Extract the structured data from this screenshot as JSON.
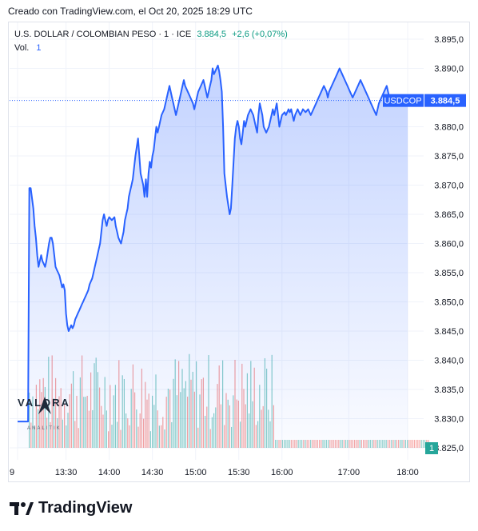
{
  "header": {
    "created_text": "Creado con TradingView.com, el Oct 20, 2025 18:29 UTC"
  },
  "legend": {
    "symbol": "U.S. DOLLAR / COLOMBIAN PESO · 1 · ICE",
    "price": "3.884,5",
    "change": "+2,6 (+0,07%)",
    "vol_label": "Vol.",
    "vol_value": "1"
  },
  "watermark": {
    "name": "VALORA",
    "sub": "ANALITIK"
  },
  "footer": {
    "brand": "TradingView"
  },
  "colors": {
    "line": "#2962ff",
    "up": "#26a69a",
    "down": "#ef5350",
    "grid": "#f0f3fa"
  },
  "chart_data": {
    "type": "area",
    "ylim": [
      3823,
      3897
    ],
    "y_ticks": [
      "3.895,0",
      "3.890,0",
      "3.885,0",
      "3.880,0",
      "3.875,0",
      "3.870,0",
      "3.865,0",
      "3.860,0",
      "3.855,0",
      "3.850,0",
      "3.845,0",
      "3.840,0",
      "3.835,0",
      "3.830,0",
      "3.825,0"
    ],
    "y_tick_values": [
      3895,
      3890,
      3885,
      3880,
      3875,
      3870,
      3865,
      3860,
      3855,
      3850,
      3845,
      3840,
      3835,
      3830,
      3825
    ],
    "x_ticks": [
      "9",
      "13:30",
      "14:00",
      "14:30",
      "15:00",
      "15:30",
      "16:00",
      "17:00",
      "18:00"
    ],
    "x_tick_values": [
      0,
      37,
      70,
      103,
      136,
      169,
      202,
      253,
      298
    ],
    "last_price_label": "USDCOP",
    "last_price_value": "3.884,5",
    "last_price": 3884.5,
    "volume_label": "1",
    "series": [
      {
        "x": [
          0,
          8,
          9,
          10,
          12,
          13,
          14,
          15,
          16,
          17,
          18,
          19,
          20,
          21,
          22,
          24,
          25,
          26,
          27,
          28,
          29,
          30,
          31,
          32,
          34,
          35,
          36,
          37,
          38,
          39,
          40,
          41,
          42,
          43,
          44,
          45,
          46,
          47,
          48,
          49,
          50,
          51,
          52,
          53,
          54,
          55,
          56,
          57,
          58,
          59,
          60,
          61,
          62,
          63,
          64,
          65,
          66,
          67,
          68,
          69,
          70,
          72,
          74,
          75,
          76,
          77,
          78,
          79,
          80,
          81,
          82,
          84,
          85,
          86,
          87,
          88,
          90,
          92,
          94,
          95,
          96,
          97,
          98,
          99,
          100,
          101,
          102,
          103,
          104,
          105,
          106,
          107,
          108,
          109,
          110,
          112,
          114,
          116,
          118,
          119,
          120,
          121,
          122,
          123,
          124,
          125,
          126,
          127,
          128,
          130,
          132,
          134,
          135,
          136,
          137,
          138,
          140,
          142,
          143,
          144,
          145,
          146,
          147,
          148,
          149,
          150,
          151,
          152,
          153,
          154,
          155,
          156,
          157,
          158,
          160,
          162,
          163,
          164,
          165,
          166,
          167,
          168,
          169,
          170,
          171,
          172,
          173,
          174,
          176,
          178,
          180,
          181,
          182,
          183,
          184,
          185,
          186,
          187,
          188,
          190,
          192,
          194,
          195,
          196,
          197,
          198,
          199,
          200,
          202,
          204,
          205,
          206,
          207,
          208,
          209,
          210,
          211,
          212,
          214,
          216,
          218,
          220,
          222,
          224,
          226,
          228,
          230,
          232,
          234,
          236,
          237,
          238,
          240,
          242,
          244,
          246,
          248,
          250,
          252,
          254,
          256,
          258,
          260,
          262,
          264,
          266,
          268,
          270,
          272,
          274,
          276,
          278,
          280,
          282,
          284,
          286,
          288,
          290,
          292,
          294,
          296,
          298
        ],
        "values": [
          3829.5,
          3829.5,
          3869.5,
          3869.5,
          3866,
          3863,
          3861,
          3858,
          3856,
          3857,
          3858,
          3857,
          3856.5,
          3856,
          3857,
          3860,
          3861,
          3861,
          3860,
          3858,
          3856,
          3855.5,
          3855,
          3854.5,
          3852.5,
          3853,
          3852,
          3848,
          3846,
          3845,
          3845.5,
          3846,
          3845.5,
          3846,
          3847,
          3847.5,
          3848,
          3848.5,
          3849,
          3849.5,
          3850,
          3850.5,
          3851,
          3851.5,
          3852,
          3853,
          3853.5,
          3854,
          3855,
          3856,
          3857,
          3858,
          3859,
          3860,
          3862,
          3864,
          3865,
          3864,
          3863,
          3864,
          3864.5,
          3864,
          3864.5,
          3863,
          3862,
          3861,
          3860.5,
          3860,
          3861,
          3862,
          3864,
          3866,
          3868,
          3869,
          3870,
          3871,
          3875,
          3878,
          3872,
          3871,
          3870,
          3868,
          3871,
          3868,
          3872,
          3874,
          3873,
          3875,
          3876,
          3878,
          3880,
          3879,
          3880,
          3881,
          3882,
          3883,
          3885,
          3887,
          3885,
          3884,
          3883,
          3882,
          3883,
          3884,
          3885,
          3886,
          3887,
          3888,
          3887,
          3886,
          3885,
          3884,
          3883,
          3884,
          3885,
          3886,
          3887,
          3888,
          3887,
          3886,
          3885,
          3886,
          3887,
          3888,
          3890,
          3889,
          3889.5,
          3890,
          3890.5,
          3889.5,
          3888,
          3886,
          3880,
          3872,
          3868,
          3865,
          3866,
          3870,
          3874,
          3878,
          3880,
          3881,
          3880,
          3878,
          3877,
          3879,
          3881,
          3880,
          3882,
          3883,
          3882,
          3881,
          3880,
          3879,
          3882,
          3884,
          3883,
          3882,
          3880,
          3879,
          3880,
          3882,
          3883,
          3882,
          3883,
          3884,
          3882,
          3880,
          3882,
          3882.5,
          3882,
          3882.5,
          3883,
          3882.5,
          3883,
          3882,
          3881,
          3882,
          3883,
          3882,
          3883,
          3882.5,
          3883,
          3882,
          3883,
          3884,
          3885,
          3886,
          3887,
          3886,
          3885,
          3886,
          3887,
          3888,
          3889,
          3890,
          3889,
          3888,
          3887,
          3886,
          3885,
          3886,
          3887,
          3888,
          3887,
          3886,
          3885,
          3884,
          3883,
          3882,
          3884,
          3885,
          3886,
          3887,
          3885,
          3884.5,
          3884.5,
          3884.5,
          3884.5,
          3884.5,
          3884.5,
          3884.5
        ]
      }
    ]
  }
}
